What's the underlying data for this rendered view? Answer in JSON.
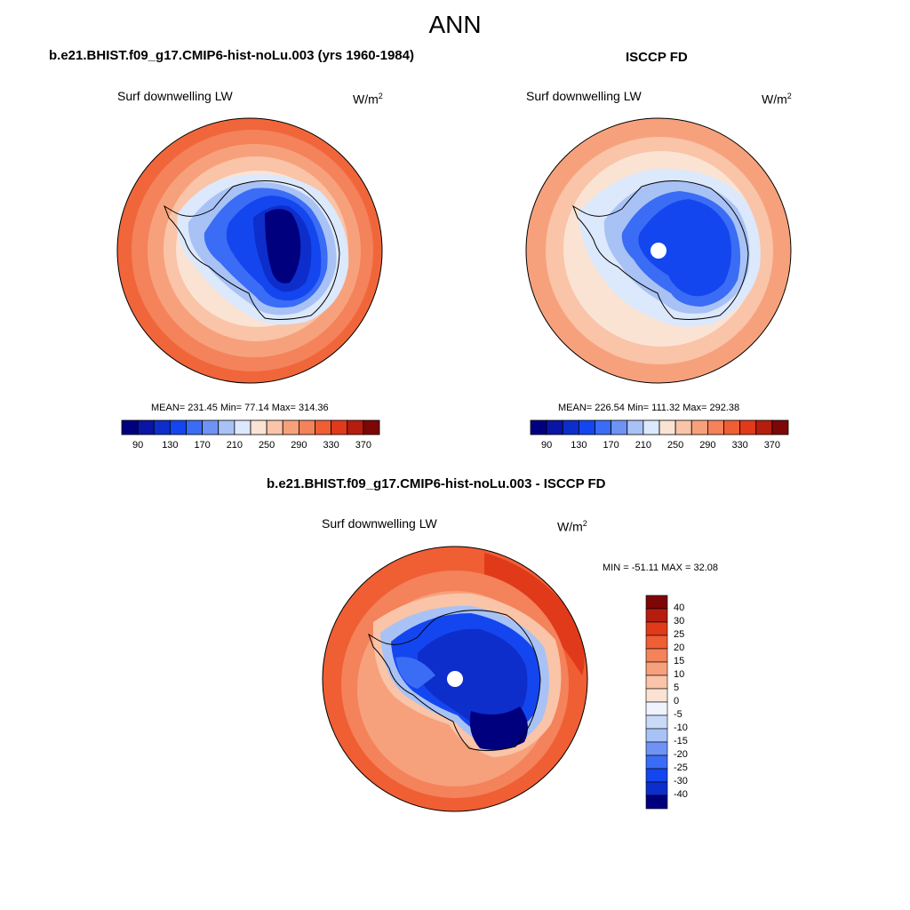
{
  "figure": {
    "main_title": "ANN"
  },
  "panel_model": {
    "title": "b.e21.BHIST.f09_g17.CMIP6-hist-noLu.003 (yrs 1960-1984)",
    "variable": "Surf downwelling LW",
    "units_base": "W/m",
    "units_exp": "2",
    "stats": "MEAN= 231.45  Min=  77.14  Max= 314.36"
  },
  "panel_obs": {
    "title": "ISCCP FD",
    "variable": "Surf downwelling LW",
    "units_base": "W/m",
    "units_exp": "2",
    "stats": "MEAN= 226.54  Min= 111.32  Max= 292.38"
  },
  "panel_diff": {
    "title": "b.e21.BHIST.f09_g17.CMIP6-hist-noLu.003 - ISCCP FD",
    "variable": "Surf downwelling LW",
    "units_base": "W/m",
    "units_exp": "2",
    "stats": "MIN = -51.11 MAX =  32.08"
  },
  "colorbar_abs": {
    "tick_labels": [
      "90",
      "130",
      "170",
      "210",
      "250",
      "290",
      "330",
      "370"
    ],
    "colors": [
      "#00007f",
      "#0a14a5",
      "#0d2ecb",
      "#1446ef",
      "#3a6cf5",
      "#6e93f5",
      "#a8c2f5",
      "#dce8fb",
      "#fbe3d4",
      "#f9c4a8",
      "#f7a17c",
      "#f4825a",
      "#f05e34",
      "#e03a1a",
      "#b51d0e",
      "#7d0606"
    ]
  },
  "colorbar_diff": {
    "tick_labels": [
      "40",
      "30",
      "25",
      "20",
      "15",
      "10",
      "5",
      "0",
      "-5",
      "-10",
      "-15",
      "-20",
      "-25",
      "-30",
      "-40"
    ],
    "colors": [
      "#7d0606",
      "#b51d0e",
      "#e03a1a",
      "#f05e34",
      "#f4825a",
      "#f7a17c",
      "#f9c4a8",
      "#fbe3d4",
      "#eef3fd",
      "#c9daf8",
      "#a8c2f5",
      "#6e93f5",
      "#3a6cf5",
      "#1446ef",
      "#0d2ecb",
      "#00007f"
    ]
  }
}
